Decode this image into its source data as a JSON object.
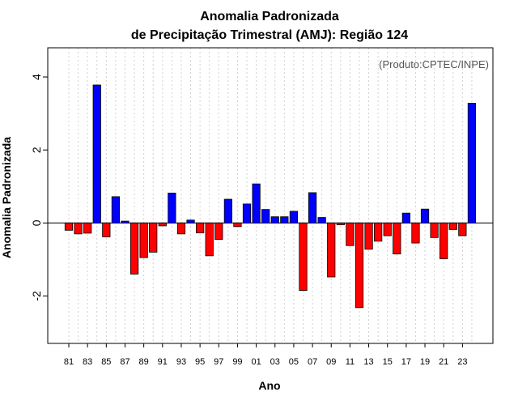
{
  "chart_data": {
    "type": "bar",
    "title": "Anomalia Padronizada",
    "subtitle": "de Precipitação Trimestral (AMJ): Região 124",
    "xlabel": "Ano",
    "ylabel": "Anomalia Padronizada",
    "annotation": "(Produto:CPTEC/INPE)",
    "ylim": [
      -3.3,
      4.8
    ],
    "yticks": [
      -2,
      0,
      2,
      4
    ],
    "grid": "vertical dotted",
    "positive_color": "#0000ff",
    "negative_color": "#ff0000",
    "x_tick_labels": [
      "81",
      "83",
      "85",
      "87",
      "89",
      "91",
      "93",
      "95",
      "97",
      "99",
      "01",
      "03",
      "05",
      "07",
      "09",
      "11",
      "13",
      "15",
      "17",
      "19",
      "21",
      "23"
    ],
    "categories": [
      "1981",
      "1982",
      "1983",
      "1984",
      "1985",
      "1986",
      "1987",
      "1988",
      "1989",
      "1990",
      "1991",
      "1992",
      "1993",
      "1994",
      "1995",
      "1996",
      "1997",
      "1998",
      "1999",
      "2000",
      "2001",
      "2002",
      "2003",
      "2004",
      "2005",
      "2006",
      "2007",
      "2008",
      "2009",
      "2010",
      "2011",
      "2012",
      "2013",
      "2014",
      "2015",
      "2016",
      "2017",
      "2018",
      "2019",
      "2020",
      "2021",
      "2022",
      "2023",
      "2024"
    ],
    "values": [
      -0.2,
      -0.3,
      -0.28,
      3.78,
      -0.38,
      0.72,
      0.05,
      -1.4,
      -0.95,
      -0.8,
      -0.08,
      0.82,
      -0.3,
      0.08,
      -0.27,
      -0.9,
      -0.45,
      0.65,
      -0.1,
      0.52,
      1.07,
      0.37,
      0.17,
      0.17,
      0.32,
      -1.85,
      0.83,
      0.15,
      -1.48,
      -0.05,
      -0.62,
      -2.32,
      -0.72,
      -0.5,
      -0.35,
      -0.85,
      0.27,
      -0.55,
      0.38,
      -0.4,
      -0.98,
      -0.18,
      -0.35,
      3.28
    ]
  }
}
